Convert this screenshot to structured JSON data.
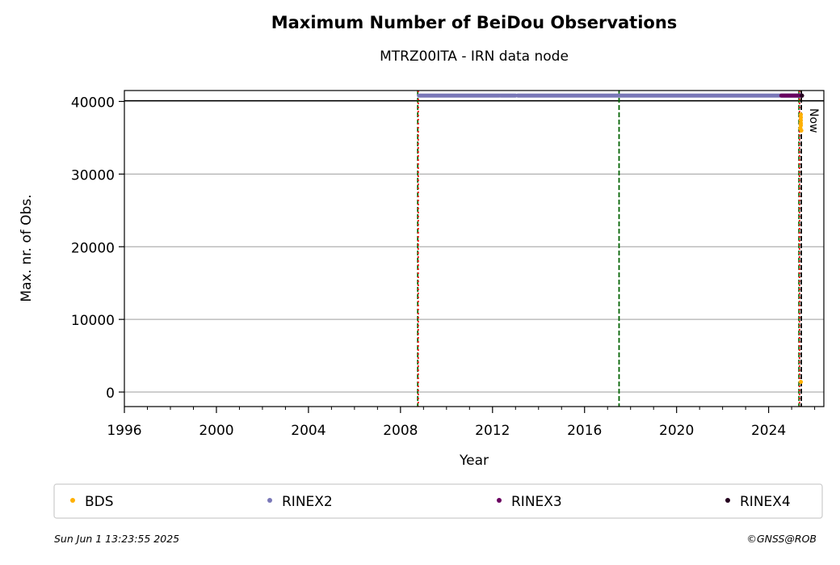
{
  "chart_data": {
    "type": "scatter",
    "title": "Maximum Number of BeiDou Observations",
    "subtitle": "MTRZ00ITA - IRN data node",
    "xlabel": "Year",
    "ylabel": "Max. nr. of Obs.",
    "xlim": [
      1996,
      2026.4
    ],
    "ylim": [
      -2000,
      41500
    ],
    "xticks": [
      1996,
      2000,
      2004,
      2008,
      2012,
      2016,
      2020,
      2024
    ],
    "yticks": [
      0,
      10000,
      20000,
      30000,
      40000
    ],
    "grid": "y",
    "reference_line_y": 40100,
    "legend_position": "bottom",
    "series": [
      {
        "name": "BDS",
        "color": "#ffb000",
        "points": [
          [
            2025.4,
            38200
          ],
          [
            2025.4,
            37800
          ],
          [
            2025.4,
            37400
          ],
          [
            2025.4,
            37000
          ],
          [
            2025.4,
            36700
          ],
          [
            2025.38,
            36300
          ],
          [
            2025.42,
            36000
          ],
          [
            2025.4,
            1400
          ]
        ]
      },
      {
        "name": "RINEX2",
        "color": "#7a78b8",
        "segments": [
          [
            2008.8,
            2012.3,
            40800
          ],
          [
            2012.35,
            2013.0,
            40800
          ],
          [
            2013.1,
            2025.4,
            40800
          ]
        ]
      },
      {
        "name": "RINEX3",
        "color": "#6a0060",
        "segments": [
          [
            2024.55,
            2025.45,
            40800
          ]
        ]
      },
      {
        "name": "RINEX4",
        "color": "#24001e",
        "points": [
          [
            2025.45,
            40800
          ]
        ]
      }
    ],
    "vertical_lines": [
      {
        "x": 2008.75,
        "color": "#006400",
        "style": "dashed"
      },
      {
        "x": 2008.77,
        "color": "#ff0000",
        "style": "dotted"
      },
      {
        "x": 2017.5,
        "color": "#006400",
        "style": "dashed"
      },
      {
        "x": 2025.32,
        "color": "#006400",
        "style": "dashed"
      },
      {
        "x": 2025.34,
        "color": "#ff0000",
        "style": "dotted"
      },
      {
        "x": 2025.42,
        "color": "#000000",
        "style": "dashed"
      }
    ],
    "now_label": "Now",
    "now_x": 2025.42
  },
  "footer": {
    "timestamp": "Sun Jun  1 13:23:55 2025",
    "credit": "©GNSS@ROB"
  }
}
